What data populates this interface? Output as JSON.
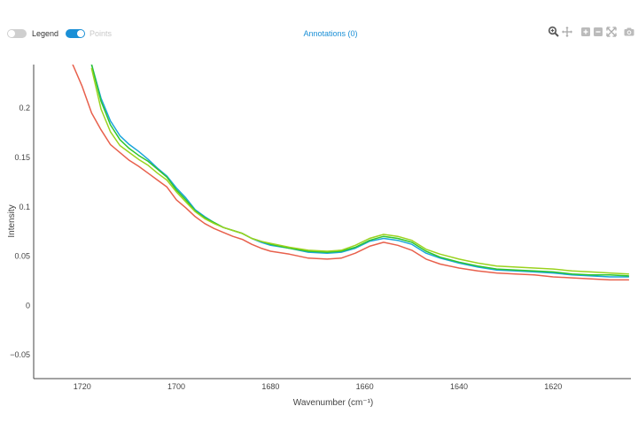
{
  "toolbar": {
    "legend_label": "Legend",
    "points_label": "Points",
    "annotations_label": "Annotations (0)",
    "icons": [
      "zoom-icon",
      "pan-icon",
      "zoom-in-icon",
      "zoom-out-icon",
      "autoscale-icon",
      "camera-icon"
    ]
  },
  "colors": {
    "accent": "#1a8fd6",
    "series_red": "#e8604c",
    "series_blue": "#1ba4db",
    "series_green": "#2ec62e",
    "series_yellowgreen": "#9ad21e"
  },
  "chart_data": {
    "type": "line",
    "title": "",
    "xlabel": "Wavenumber (cm⁻¹)",
    "ylabel": "Intensity",
    "xlim": [
      1730.3,
      1603.5
    ],
    "ylim": [
      -0.074,
      0.244
    ],
    "x_reversed": true,
    "grid": false,
    "legend": "hidden",
    "xticks": [
      1720,
      1700,
      1680,
      1660,
      1640,
      1620
    ],
    "xtick_labels": [
      "1720",
      "1700",
      "1680",
      "1660",
      "1640",
      "1620"
    ],
    "yticks": [
      -0.05,
      0,
      0.05,
      0.1,
      0.15,
      0.2
    ],
    "ytick_labels": [
      "−0.05",
      "0",
      "0.05",
      "0.1",
      "0.15",
      "0.2"
    ],
    "series": [
      {
        "color": "#e8604c",
        "x": [
          1722,
          1720,
          1718,
          1716,
          1714,
          1712,
          1710,
          1708,
          1706,
          1704,
          1702,
          1700,
          1698,
          1696,
          1694,
          1692,
          1690,
          1688,
          1686,
          1684,
          1682,
          1680,
          1676,
          1672,
          1668,
          1665,
          1662,
          1659,
          1656,
          1653,
          1650,
          1647,
          1644,
          1640,
          1636,
          1632,
          1628,
          1624,
          1620,
          1616,
          1612,
          1608,
          1604
        ],
        "y": [
          0.244,
          0.222,
          0.195,
          0.178,
          0.163,
          0.155,
          0.147,
          0.141,
          0.134,
          0.127,
          0.12,
          0.107,
          0.099,
          0.09,
          0.083,
          0.078,
          0.074,
          0.07,
          0.067,
          0.062,
          0.058,
          0.055,
          0.052,
          0.048,
          0.047,
          0.048,
          0.053,
          0.06,
          0.064,
          0.061,
          0.056,
          0.047,
          0.042,
          0.038,
          0.035,
          0.033,
          0.032,
          0.031,
          0.029,
          0.028,
          0.027,
          0.026,
          0.026
        ]
      },
      {
        "color": "#1ba4db",
        "x": [
          1718,
          1716,
          1714,
          1712,
          1710,
          1708,
          1706,
          1704,
          1702,
          1700,
          1698,
          1696,
          1694,
          1692,
          1690,
          1688,
          1686,
          1684,
          1682,
          1680,
          1676,
          1672,
          1668,
          1665,
          1662,
          1659,
          1656,
          1653,
          1650,
          1647,
          1644,
          1640,
          1636,
          1632,
          1628,
          1624,
          1620,
          1616,
          1612,
          1608,
          1604
        ],
        "y": [
          0.244,
          0.21,
          0.187,
          0.172,
          0.163,
          0.156,
          0.148,
          0.139,
          0.131,
          0.119,
          0.109,
          0.097,
          0.09,
          0.084,
          0.079,
          0.076,
          0.073,
          0.068,
          0.064,
          0.061,
          0.058,
          0.054,
          0.053,
          0.054,
          0.058,
          0.065,
          0.068,
          0.066,
          0.062,
          0.053,
          0.048,
          0.043,
          0.039,
          0.036,
          0.035,
          0.034,
          0.033,
          0.031,
          0.03,
          0.029,
          0.029
        ]
      },
      {
        "color": "#2ec62e",
        "x": [
          1718,
          1716,
          1714,
          1712,
          1710,
          1708,
          1706,
          1704,
          1702,
          1700,
          1698,
          1696,
          1694,
          1692,
          1690,
          1688,
          1686,
          1684,
          1682,
          1680,
          1676,
          1672,
          1668,
          1665,
          1662,
          1659,
          1656,
          1653,
          1650,
          1647,
          1644,
          1640,
          1636,
          1632,
          1628,
          1624,
          1620,
          1616,
          1612,
          1608,
          1604
        ],
        "y": [
          0.244,
          0.207,
          0.183,
          0.168,
          0.159,
          0.152,
          0.146,
          0.138,
          0.13,
          0.117,
          0.107,
          0.096,
          0.089,
          0.084,
          0.079,
          0.076,
          0.073,
          0.068,
          0.065,
          0.062,
          0.058,
          0.055,
          0.054,
          0.055,
          0.059,
          0.066,
          0.07,
          0.068,
          0.064,
          0.055,
          0.049,
          0.044,
          0.04,
          0.037,
          0.036,
          0.035,
          0.034,
          0.032,
          0.031,
          0.031,
          0.03
        ]
      },
      {
        "color": "#9ad21e",
        "x": [
          1718,
          1716,
          1714,
          1712,
          1710,
          1708,
          1706,
          1704,
          1702,
          1700,
          1698,
          1696,
          1694,
          1692,
          1690,
          1688,
          1686,
          1684,
          1682,
          1680,
          1676,
          1672,
          1668,
          1665,
          1662,
          1659,
          1656,
          1653,
          1650,
          1647,
          1644,
          1640,
          1636,
          1632,
          1628,
          1624,
          1620,
          1616,
          1612,
          1608,
          1604
        ],
        "y": [
          0.24,
          0.199,
          0.176,
          0.162,
          0.155,
          0.148,
          0.142,
          0.134,
          0.127,
          0.115,
          0.105,
          0.095,
          0.088,
          0.083,
          0.079,
          0.076,
          0.073,
          0.068,
          0.065,
          0.063,
          0.059,
          0.056,
          0.055,
          0.056,
          0.061,
          0.068,
          0.072,
          0.07,
          0.066,
          0.057,
          0.052,
          0.047,
          0.043,
          0.04,
          0.039,
          0.038,
          0.037,
          0.035,
          0.034,
          0.033,
          0.032
        ]
      }
    ]
  }
}
